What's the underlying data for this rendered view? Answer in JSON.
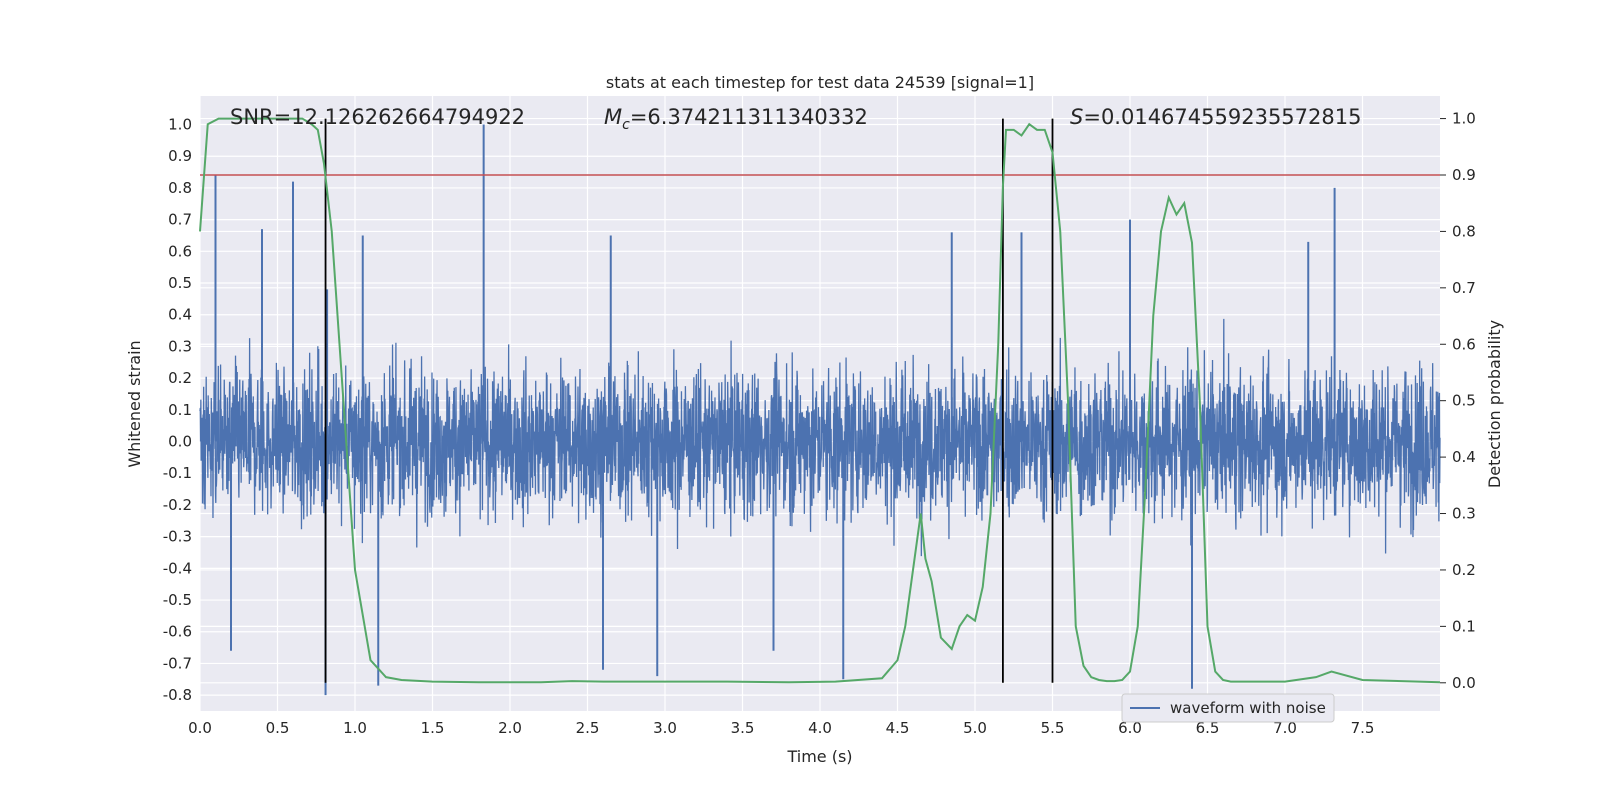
{
  "chart_data": {
    "type": "line",
    "title": "stats at each timestep for test data 24539 [signal=1]",
    "xlabel": "Time (s)",
    "ylabel": "Whitened strain",
    "y2label": "Detection probability",
    "xlim": [
      0.0,
      8.0
    ],
    "ylim": [
      -0.85,
      1.09
    ],
    "y2lim": [
      -0.05,
      1.04
    ],
    "x_ticks": [
      "0.0",
      "0.5",
      "1.0",
      "1.5",
      "2.0",
      "2.5",
      "3.0",
      "3.5",
      "4.0",
      "4.5",
      "5.0",
      "5.5",
      "6.0",
      "6.5",
      "7.0",
      "7.5"
    ],
    "y_ticks": [
      "-0.8",
      "-0.7",
      "-0.6",
      "-0.5",
      "-0.4",
      "-0.3",
      "-0.2",
      "-0.1",
      "0.0",
      "0.1",
      "0.2",
      "0.3",
      "0.4",
      "0.5",
      "0.6",
      "0.7",
      "0.8",
      "0.9",
      "1.0"
    ],
    "y2_ticks": [
      "0.0",
      "0.1",
      "0.2",
      "0.3",
      "0.4",
      "0.5",
      "0.6",
      "0.7",
      "0.8",
      "0.9",
      "1.0"
    ],
    "grid": true,
    "legend": {
      "placement": "lower-right",
      "entries": [
        "waveform with noise"
      ]
    },
    "annotations": {
      "snr_text": "SNR=12.126262664794922",
      "mc_label": "M",
      "mc_sub": "c",
      "mc_value": "=6.374211311340332",
      "s_label": "S",
      "s_value": "=0.014674559235572815"
    },
    "colors": {
      "plot_bg": "#EAEAF2",
      "grid": "#FFFFFF",
      "waveform": "#4C72B0",
      "probability": "#55A868",
      "threshold": "#C44E52",
      "marker": "#000000"
    },
    "threshold_y2": 0.9,
    "vertical_markers_x": [
      0.81,
      5.18,
      5.5
    ],
    "series": [
      {
        "name": "waveform with noise",
        "kind": "noise-strain",
        "envelope_abs": 0.4,
        "peaks": [
          {
            "x": 0.1,
            "y": 0.84
          },
          {
            "x": 0.6,
            "y": 0.82
          },
          {
            "x": 0.81,
            "y": -0.8
          },
          {
            "x": 0.82,
            "y": 0.48
          },
          {
            "x": 1.15,
            "y": -0.77
          },
          {
            "x": 1.83,
            "y": 1.0
          },
          {
            "x": 2.6,
            "y": -0.72
          },
          {
            "x": 2.95,
            "y": -0.74
          },
          {
            "x": 4.15,
            "y": -0.75
          },
          {
            "x": 6.4,
            "y": -0.78
          },
          {
            "x": 7.32,
            "y": 0.8
          },
          {
            "x": 1.05,
            "y": 0.65
          },
          {
            "x": 0.4,
            "y": 0.67
          },
          {
            "x": 2.65,
            "y": 0.65
          },
          {
            "x": 4.85,
            "y": 0.66
          },
          {
            "x": 5.3,
            "y": 0.66
          },
          {
            "x": 6.0,
            "y": 0.7
          },
          {
            "x": 7.15,
            "y": 0.63
          },
          {
            "x": 0.2,
            "y": -0.66
          },
          {
            "x": 3.7,
            "y": -0.66
          }
        ]
      },
      {
        "name": "",
        "axis": "right",
        "x": [
          0.0,
          0.05,
          0.12,
          0.2,
          0.3,
          0.4,
          0.5,
          0.6,
          0.66,
          0.72,
          0.76,
          0.8,
          0.85,
          0.9,
          0.95,
          1.0,
          1.05,
          1.1,
          1.2,
          1.3,
          1.5,
          1.8,
          2.2,
          2.4,
          2.6,
          3.0,
          3.4,
          3.8,
          4.1,
          4.4,
          4.5,
          4.55,
          4.6,
          4.65,
          4.68,
          4.72,
          4.78,
          4.85,
          4.9,
          4.95,
          5.0,
          5.05,
          5.1,
          5.15,
          5.18,
          5.2,
          5.25,
          5.3,
          5.35,
          5.4,
          5.45,
          5.5,
          5.55,
          5.6,
          5.65,
          5.7,
          5.75,
          5.8,
          5.85,
          5.9,
          5.95,
          6.0,
          6.05,
          6.1,
          6.15,
          6.2,
          6.25,
          6.3,
          6.35,
          6.4,
          6.45,
          6.5,
          6.55,
          6.6,
          6.65,
          6.7,
          6.8,
          7.0,
          7.2,
          7.3,
          7.5,
          8.0
        ],
        "y": [
          0.8,
          0.99,
          1.0,
          1.0,
          1.0,
          1.0,
          1.0,
          1.0,
          1.0,
          0.99,
          0.98,
          0.92,
          0.8,
          0.6,
          0.4,
          0.2,
          0.12,
          0.04,
          0.01,
          0.005,
          0.002,
          0.001,
          0.001,
          0.003,
          0.002,
          0.002,
          0.002,
          0.001,
          0.002,
          0.008,
          0.04,
          0.1,
          0.2,
          0.3,
          0.22,
          0.18,
          0.08,
          0.06,
          0.1,
          0.12,
          0.11,
          0.17,
          0.3,
          0.6,
          0.88,
          0.98,
          0.98,
          0.97,
          0.99,
          0.98,
          0.98,
          0.94,
          0.8,
          0.5,
          0.1,
          0.03,
          0.01,
          0.005,
          0.003,
          0.003,
          0.005,
          0.02,
          0.1,
          0.35,
          0.65,
          0.8,
          0.86,
          0.83,
          0.85,
          0.78,
          0.5,
          0.1,
          0.02,
          0.005,
          0.002,
          0.002,
          0.002,
          0.002,
          0.01,
          0.02,
          0.005,
          0.001
        ]
      }
    ]
  }
}
